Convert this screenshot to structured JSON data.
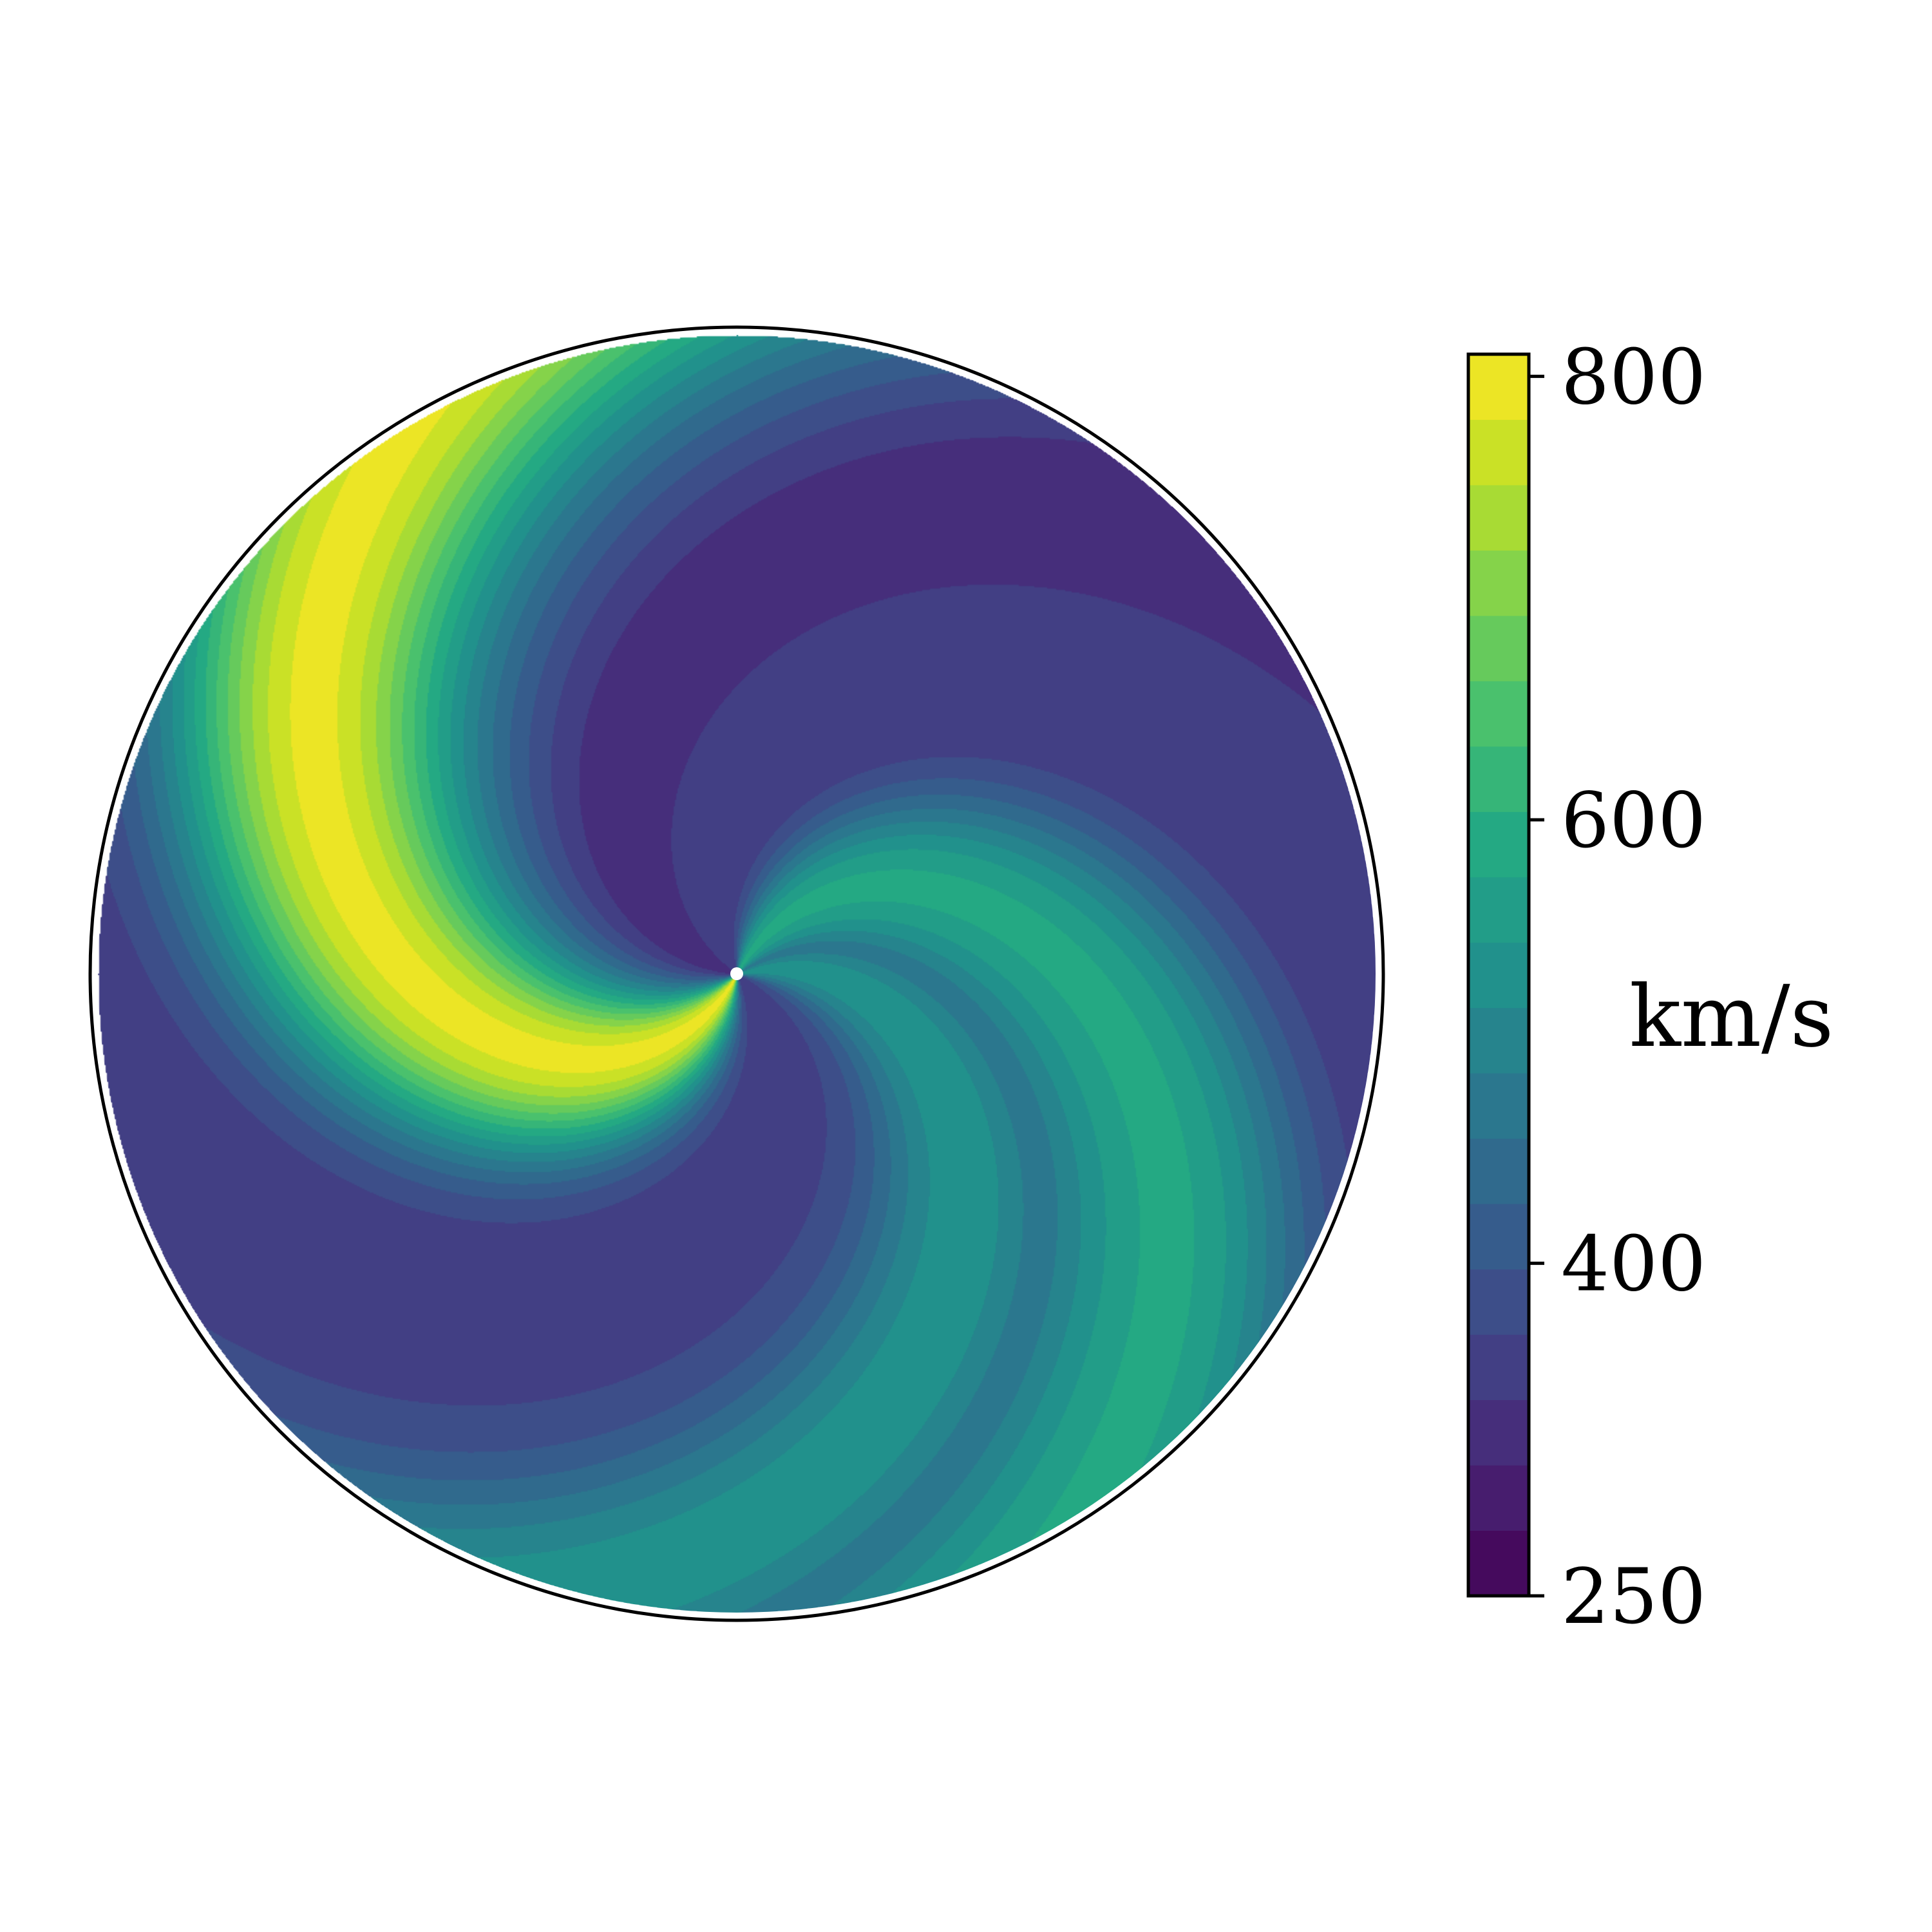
{
  "chart_data": {
    "type": "heatmap",
    "projection": "polar",
    "description_of_field": "spiral speed map",
    "colormap": "viridis",
    "levels": 19,
    "vmin": 250,
    "vmax": 810,
    "colorbar": {
      "ticks": [
        250,
        400,
        600,
        800
      ],
      "tick_labels": [
        "250",
        "400",
        "600",
        "800"
      ],
      "label": "km/s"
    },
    "streams": [
      {
        "center_angle_deg": 60,
        "peak": 580
      },
      {
        "center_angle_deg": 15,
        "peak": 520
      },
      {
        "center_angle_deg": 240,
        "peak": 790
      }
    ],
    "background": 330,
    "spiral_twist_per_unit_radius_deg": 120
  }
}
